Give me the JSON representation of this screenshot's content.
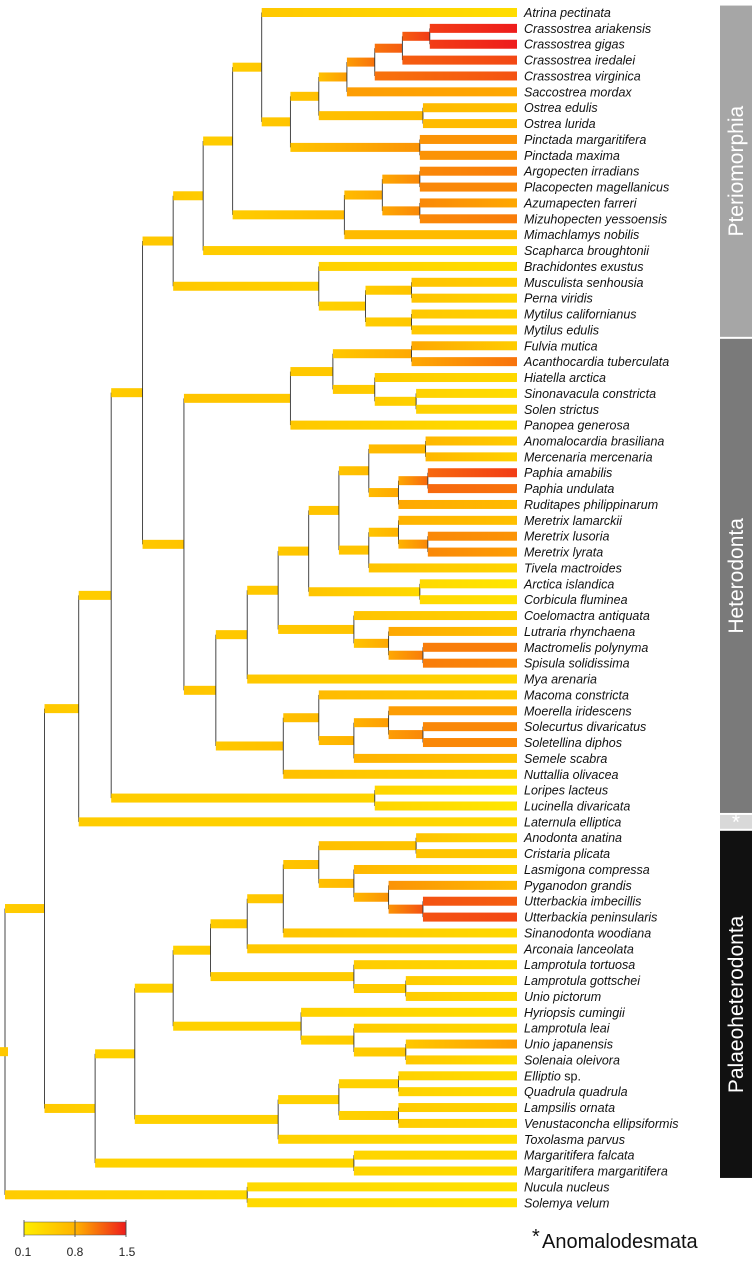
{
  "tree": {
    "c_ros": {
      "children": [
        "c_out",
        "c_pal"
      ]
    },
    "c_out": {
      "children": [
        "Nucula nucleus",
        "Solemya velum"
      ],
      "rate": 0.35
    },
    "c_pal": {
      "children": [
        "c_a1",
        "c_b1"
      ],
      "rate": 0.55
    },
    "c_a1": {
      "children": [
        "c_a2",
        "Laternula elliptica"
      ],
      "rate": 0.5
    },
    "c_a2": {
      "children": [
        "c_a3",
        "c_luc"
      ],
      "rate": 0.5
    },
    "c_luc": {
      "children": [
        "Loripes lacteus",
        "Lucinella divaricata"
      ],
      "rate": 0.4
    },
    "c_a3": {
      "children": [
        "c_pt",
        "c_het"
      ],
      "rate": 0.55
    },
    "c_pt": {
      "children": [
        "c_pt1",
        "c_myt"
      ],
      "rate": 0.55
    },
    "c_pt1": {
      "children": [
        "c_pt2",
        "Scapharca broughtonii"
      ],
      "rate": 0.5
    },
    "c_pt2": {
      "children": [
        "c_ost",
        "c_pec"
      ],
      "rate": 0.5
    },
    "c_ost": {
      "children": [
        "Atrina pectinata",
        "c_ost1"
      ],
      "rate": 0.55
    },
    "c_ost1": {
      "children": [
        "c_ost2",
        "c_pin"
      ],
      "rate": 0.6
    },
    "c_ost2": {
      "children": [
        "c_crs",
        "c_oe"
      ],
      "rate": 0.65
    },
    "c_crs": {
      "children": [
        "c_cr1",
        "Saccostrea mordax"
      ],
      "rate": 0.9
    },
    "c_cr1": {
      "children": [
        "c_cr2",
        "Crassostrea virginica"
      ],
      "rate": 1.1
    },
    "c_cr2": {
      "children": [
        "c_cr3",
        "Crassostrea iredalei"
      ],
      "rate": 1.2
    },
    "c_cr3": {
      "children": [
        "Crassostrea ariakensis",
        "Crassostrea gigas"
      ],
      "rate": 1.35
    },
    "c_oe": {
      "children": [
        "Ostrea edulis",
        "Ostrea lurida"
      ],
      "rate": 0.7
    },
    "c_pin": {
      "children": [
        "Pinctada margaritifera",
        "Pinctada maxima"
      ],
      "rate": 0.95
    },
    "c_pec": {
      "children": [
        "c_pec1",
        "Mimachlamys nobilis"
      ],
      "rate": 0.7
    },
    "c_pec1": {
      "children": [
        "c_pec2",
        "c_pec3"
      ],
      "rate": 0.85
    },
    "c_pec2": {
      "children": [
        "Argopecten irradians",
        "Placopecten magellanicus"
      ],
      "rate": 1.0
    },
    "c_pec3": {
      "children": [
        "Azumapecten farreri",
        "Mizuhopecten yessoensis"
      ],
      "rate": 1.0
    },
    "c_myt": {
      "children": [
        "Brachidontes exustus",
        "c_myt1"
      ],
      "rate": 0.45
    },
    "c_myt1": {
      "children": [
        "c_myt2",
        "c_myt3"
      ],
      "rate": 0.5
    },
    "c_myt2": {
      "children": [
        "Musculista senhousia",
        "Perna viridis"
      ],
      "rate": 0.6
    },
    "c_myt3": {
      "children": [
        "Mytilus californianus",
        "Mytilus edulis"
      ],
      "rate": 0.55
    },
    "c_het": {
      "children": [
        "c_h1",
        "c_imp"
      ],
      "rate": 0.6
    },
    "c_h1": {
      "children": [
        "c_h2",
        "Panopea generosa"
      ],
      "rate": 0.55
    },
    "c_h2": {
      "children": [
        "c_card",
        "c_h3"
      ],
      "rate": 0.55
    },
    "c_card": {
      "children": [
        "Fulvia mutica",
        "Acanthocardia tuberculata"
      ],
      "rate": 0.85
    },
    "c_h3": {
      "children": [
        "Hiatella arctica",
        "c_sol"
      ],
      "rate": 0.5
    },
    "c_sol": {
      "children": [
        "Sinonavacula constricta",
        "Solen strictus"
      ],
      "rate": 0.45
    },
    "c_imp": {
      "children": [
        "c_i1",
        "c_tel"
      ],
      "rate": 0.55
    },
    "c_i1": {
      "children": [
        "c_i2",
        "Mya arenaria"
      ],
      "rate": 0.55
    },
    "c_i2": {
      "children": [
        "c_ven",
        "c_mac"
      ],
      "rate": 0.55
    },
    "c_ven": {
      "children": [
        "c_ven1",
        "c_arc"
      ],
      "rate": 0.6
    },
    "c_ven1": {
      "children": [
        "c_ven2",
        "c_mer"
      ],
      "rate": 0.6
    },
    "c_ven2": {
      "children": [
        "c_ano",
        "c_pap"
      ],
      "rate": 0.7
    },
    "c_ano": {
      "children": [
        "Anomalocardia brasiliana",
        "Mercenaria mercenaria"
      ],
      "rate": 0.75
    },
    "c_pap": {
      "children": [
        "c_pap1",
        "Ruditapes philippinarum"
      ],
      "rate": 0.85
    },
    "c_pap1": {
      "children": [
        "Paphia amabilis",
        "Paphia undulata"
      ],
      "rate": 1.15
    },
    "c_mer": {
      "children": [
        "c_mer1",
        "Tivela mactroides"
      ],
      "rate": 0.6
    },
    "c_mer1": {
      "children": [
        "Meretrix lamarckii",
        "c_mer2"
      ],
      "rate": 0.8
    },
    "c_mer2": {
      "children": [
        "Meretrix lusoria",
        "Meretrix lyrata"
      ],
      "rate": 1.0
    },
    "c_arc": {
      "children": [
        "Arctica islandica",
        "Corbicula fluminea"
      ],
      "rate": 0.35
    },
    "c_mac": {
      "children": [
        "Coelomactra antiquata",
        "c_mac1"
      ],
      "rate": 0.6
    },
    "c_mac1": {
      "children": [
        "Lutraria rhynchaena",
        "c_mac2"
      ],
      "rate": 0.85
    },
    "c_mac2": {
      "children": [
        "Mactromelis polynyma",
        "Spisula solidissima"
      ],
      "rate": 1.05
    },
    "c_tel": {
      "children": [
        "c_tel1",
        "Nuttallia olivacea"
      ],
      "rate": 0.65
    },
    "c_tel1": {
      "children": [
        "Macoma constricta",
        "c_tel2"
      ],
      "rate": 0.7
    },
    "c_tel2": {
      "children": [
        "c_tel3",
        "Semele scabra"
      ],
      "rate": 0.8
    },
    "c_tel3": {
      "children": [
        "Moerella iridescens",
        "c_tel4"
      ],
      "rate": 0.9
    },
    "c_tel4": {
      "children": [
        "Solecurtus divaricatus",
        "Soletellina diphos"
      ],
      "rate": 1.0
    },
    "c_b1": {
      "children": [
        "c_b2",
        "c_mf"
      ],
      "rate": 0.45
    },
    "c_mf": {
      "children": [
        "Margaritifera falcata",
        "Margaritifera margaritifera"
      ],
      "rate": 0.4
    },
    "c_b2": {
      "children": [
        "c_b3",
        "c_amb"
      ],
      "rate": 0.45
    },
    "c_b3": {
      "children": [
        "c_b4",
        "c_hyr"
      ],
      "rate": 0.45
    },
    "c_b4": {
      "children": [
        "c_anod",
        "c_lam"
      ],
      "rate": 0.5
    },
    "c_anod": {
      "children": [
        "c_an1",
        "Arconaia lanceolata"
      ],
      "rate": 0.55
    },
    "c_an1": {
      "children": [
        "c_an2",
        "Sinanodonta woodiana"
      ],
      "rate": 0.6
    },
    "c_an2": {
      "children": [
        "c_an3",
        "c_pyg"
      ],
      "rate": 0.65
    },
    "c_an3": {
      "children": [
        "Anodonta anatina",
        "Cristaria plicata"
      ],
      "rate": 0.6
    },
    "c_pyg": {
      "children": [
        "Lasmigona compressa",
        "c_pyg1"
      ],
      "rate": 0.75
    },
    "c_pyg1": {
      "children": [
        "Pyganodon grandis",
        "c_utt"
      ],
      "rate": 0.95
    },
    "c_utt": {
      "children": [
        "Utterbackia imbecillis",
        "Utterbackia peninsularis"
      ],
      "rate": 1.25
    },
    "c_lam": {
      "children": [
        "Lamprotula tortuosa",
        "c_lam1"
      ],
      "rate": 0.5
    },
    "c_lam1": {
      "children": [
        "Lamprotula gottschei",
        "Unio pictorum"
      ],
      "rate": 0.5
    },
    "c_hyr": {
      "children": [
        "Hyriopsis cumingii",
        "c_hyr1"
      ],
      "rate": 0.45
    },
    "c_hyr1": {
      "children": [
        "Lamprotula leai",
        "c_hyr2"
      ],
      "rate": 0.5
    },
    "c_hyr2": {
      "children": [
        "Unio japanensis",
        "Solenaia oleivora"
      ],
      "rate": 0.55
    },
    "c_amb": {
      "children": [
        "c_amb1",
        "Toxolasma parvus"
      ],
      "rate": 0.45
    },
    "c_amb1": {
      "children": [
        "c_amb2",
        "c_lamp"
      ],
      "rate": 0.45
    },
    "c_amb2": {
      "children": [
        "Elliptio sp.",
        "Quadrula quadrula"
      ],
      "rate": 0.45
    },
    "c_lamp": {
      "children": [
        "Lampsilis ornata",
        "Venustaconcha ellipsiformis"
      ],
      "rate": 0.5
    }
  },
  "taxa": [
    "Atrina pectinata",
    "Crassostrea ariakensis",
    "Crassostrea gigas",
    "Crassostrea iredalei",
    "Crassostrea virginica",
    "Saccostrea mordax",
    "Ostrea edulis",
    "Ostrea lurida",
    "Pinctada margaritifera",
    "Pinctada maxima",
    "Argopecten irradians",
    "Placopecten magellanicus",
    "Azumapecten farreri",
    "Mizuhopecten yessoensis",
    "Mimachlamys nobilis",
    "Scapharca broughtonii",
    "Brachidontes exustus",
    "Musculista senhousia",
    "Perna viridis",
    "Mytilus californianus",
    "Mytilus edulis",
    "Fulvia mutica",
    "Acanthocardia tuberculata",
    "Hiatella arctica",
    "Sinonavacula constricta",
    "Solen strictus",
    "Panopea generosa",
    "Anomalocardia brasiliana",
    "Mercenaria mercenaria",
    "Paphia amabilis",
    "Paphia undulata",
    "Ruditapes philippinarum",
    "Meretrix lamarckii",
    "Meretrix lusoria",
    "Meretrix lyrata",
    "Tivela mactroides",
    "Arctica islandica",
    "Corbicula fluminea",
    "Coelomactra antiquata",
    "Lutraria rhynchaena",
    "Mactromelis polynyma",
    "Spisula solidissima",
    "Mya arenaria",
    "Macoma constricta",
    "Moerella iridescens",
    "Solecurtus divaricatus",
    "Soletellina diphos",
    "Semele scabra",
    "Nuttallia olivacea",
    "Loripes lacteus",
    "Lucinella divaricata",
    "Laternula elliptica",
    "Anodonta anatina",
    "Cristaria plicata",
    "Lasmigona compressa",
    "Pyganodon grandis",
    "Utterbackia imbecillis",
    "Utterbackia peninsularis",
    "Sinanodonta woodiana",
    "Arconaia lanceolata",
    "Lamprotula tortuosa",
    "Lamprotula gottschei",
    "Unio pictorum",
    "Hyriopsis cumingii",
    "Lamprotula leai",
    "Unio japanensis",
    "Solenaia oleivora",
    "Elliptio sp.",
    "Quadrula quadrula",
    "Lampsilis ornata",
    "Venustaconcha ellipsiformis",
    "Toxolasma parvus",
    "Margaritifera falcata",
    "Margaritifera margaritifera",
    "Nucula nucleus",
    "Solemya velum"
  ],
  "tip_rates": {
    "Atrina pectinata": 0.3,
    "Crassostrea ariakensis": 1.5,
    "Crassostrea gigas": 1.5,
    "Crassostrea iredalei": 1.3,
    "Crassostrea virginica": 1.25,
    "Saccostrea mordax": 0.85,
    "Ostrea edulis": 0.65,
    "Ostrea lurida": 0.7,
    "Pinctada margaritifera": 0.95,
    "Pinctada maxima": 0.95,
    "Argopecten irradians": 1.05,
    "Placopecten magellanicus": 1.0,
    "Azumapecten farreri": 0.85,
    "Mizuhopecten yessoensis": 1.05,
    "Mimachlamys nobilis": 0.7,
    "Scapharca broughtonii": 0.35,
    "Brachidontes exustus": 0.3,
    "Musculista senhousia": 0.5,
    "Perna viridis": 0.4,
    "Mytilus californianus": 0.45,
    "Mytilus edulis": 0.5,
    "Fulvia mutica": 0.5,
    "Acanthocardia tuberculata": 1.1,
    "Hiatella arctica": 0.35,
    "Sinonavacula constricta": 0.3,
    "Solen strictus": 0.4,
    "Panopea generosa": 0.3,
    "Anomalocardia brasiliana": 0.5,
    "Mercenaria mercenaria": 0.45,
    "Paphia amabilis": 1.35,
    "Paphia undulata": 1.1,
    "Ruditapes philippinarum": 0.7,
    "Meretrix lamarckii": 0.65,
    "Meretrix lusoria": 0.95,
    "Meretrix lyrata": 0.9,
    "Tivela mactroides": 0.4,
    "Arctica islandica": 0.2,
    "Corbicula fluminea": 0.25,
    "Coelomactra antiquata": 0.45,
    "Lutraria rhynchaena": 0.6,
    "Mactromelis polynyma": 1.05,
    "Spisula solidissima": 1.0,
    "Mya arenaria": 0.4,
    "Macoma constricta": 0.5,
    "Moerella iridescens": 0.9,
    "Solecurtus divaricatus": 1.0,
    "Soletellina diphos": 1.0,
    "Semele scabra": 0.6,
    "Nuttallia olivacea": 0.4,
    "Loripes lacteus": 0.2,
    "Lucinella divaricata": 0.2,
    "Laternula elliptica": 0.35,
    "Anodonta anatina": 0.35,
    "Cristaria plicata": 0.55,
    "Lasmigona compressa": 0.4,
    "Pyganodon grandis": 0.7,
    "Utterbackia imbecillis": 1.2,
    "Utterbackia peninsularis": 1.3,
    "Sinanodonta woodiana": 0.35,
    "Arconaia lanceolata": 0.4,
    "Lamprotula tortuosa": 0.35,
    "Lamprotula gottschei": 0.35,
    "Unio pictorum": 0.35,
    "Hyriopsis cumingii": 0.3,
    "Lamprotula leai": 0.35,
    "Unio japanensis": 0.9,
    "Solenaia oleivora": 0.3,
    "Elliptio sp.": 0.3,
    "Quadrula quadrula": 0.3,
    "Lampsilis ornata": 0.4,
    "Venustaconcha ellipsiformis": 0.35,
    "Toxolasma parvus": 0.3,
    "Margaritifera falcata": 0.35,
    "Margaritifera margaritifera": 0.3,
    "Nucula nucleus": 0.25,
    "Solemya velum": 0.25
  },
  "upright_suffix": {
    "Elliptio sp.": " sp."
  },
  "groups": [
    {
      "label": "Pteriomorphia",
      "first": "Atrina pectinata",
      "last": "Mytilus edulis",
      "color": "#a6a6a6",
      "text_color": "#222222"
    },
    {
      "label": "Heterodonta",
      "first": "Fulvia mutica",
      "last": "Lucinella divaricata",
      "color": "#7a7a7a",
      "text_color": "#ffffff"
    },
    {
      "label": "*",
      "first": "Laternula elliptica",
      "last": "Laternula elliptica",
      "color": "#d9d9d9",
      "text_color": "#222222"
    },
    {
      "label": "Palaeoheterodonta",
      "first": "Anodonta anatina",
      "last": "Margaritifera margaritifera",
      "color": "#111111",
      "text_color": "#ffffff"
    }
  ],
  "legend": {
    "min": 0.1,
    "max": 1.5,
    "ticks": [
      "0.1",
      "0.8",
      "1.5"
    ],
    "colors": [
      "#ffee00",
      "#ffb300",
      "#ee1c1c"
    ]
  },
  "footnote": {
    "star": "*",
    "text": "Anomalodesmata"
  }
}
